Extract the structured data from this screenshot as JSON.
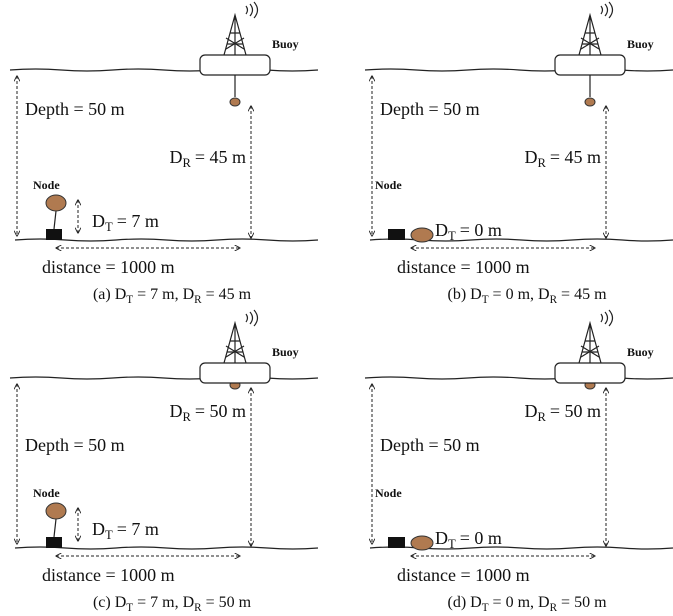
{
  "panels": [
    {
      "buoy": "Buoy",
      "node": "Node",
      "depth": "Depth = 50 m",
      "receiver_depth": {
        "symbol": "D",
        "subscript": "R",
        "rest": "= 45 m"
      },
      "transmitter_depth": {
        "symbol": "D",
        "subscript": "T",
        "rest": "= 7 m"
      },
      "distance": "distance = 1000 m",
      "caption": [
        {
          "text": "(a) D"
        },
        {
          "sub": "T"
        },
        {
          "text": "= 7 m, D"
        },
        {
          "sub": "R"
        },
        {
          "text": "= 45 m"
        }
      ]
    },
    {
      "buoy": "Buoy",
      "node": "Node",
      "depth": "Depth = 50 m",
      "receiver_depth": {
        "symbol": "D",
        "subscript": "R",
        "rest": "= 45 m"
      },
      "transmitter_depth": {
        "symbol": "D",
        "subscript": "T",
        "rest": "= 0 m"
      },
      "distance": "distance = 1000 m",
      "caption": [
        {
          "text": "(b) D"
        },
        {
          "sub": "T"
        },
        {
          "text": "= 0 m, D"
        },
        {
          "sub": "R"
        },
        {
          "text": "= 45 m"
        }
      ]
    },
    {
      "buoy": "Buoy",
      "node": "Node",
      "depth": "Depth = 50 m",
      "receiver_depth": {
        "symbol": "D",
        "subscript": "R",
        "rest": "= 50 m"
      },
      "transmitter_depth": {
        "symbol": "D",
        "subscript": "T",
        "rest": "= 7 m"
      },
      "distance": "distance = 1000 m",
      "caption": [
        {
          "text": "(c) D"
        },
        {
          "sub": "T"
        },
        {
          "text": "= 7 m, D"
        },
        {
          "sub": "R"
        },
        {
          "text": "= 50 m"
        }
      ]
    },
    {
      "buoy": "Buoy",
      "node": "Node",
      "depth": "Depth = 50 m",
      "receiver_depth": {
        "symbol": "D",
        "subscript": "R",
        "rest": "= 50 m"
      },
      "transmitter_depth": {
        "symbol": "D",
        "subscript": "T",
        "rest": "= 0 m"
      },
      "distance": "distance = 1000 m",
      "caption": [
        {
          "text": "(d) D"
        },
        {
          "sub": "T"
        },
        {
          "text": "= 0 m, D"
        },
        {
          "sub": "R"
        },
        {
          "text": "= 50 m"
        }
      ]
    }
  ]
}
